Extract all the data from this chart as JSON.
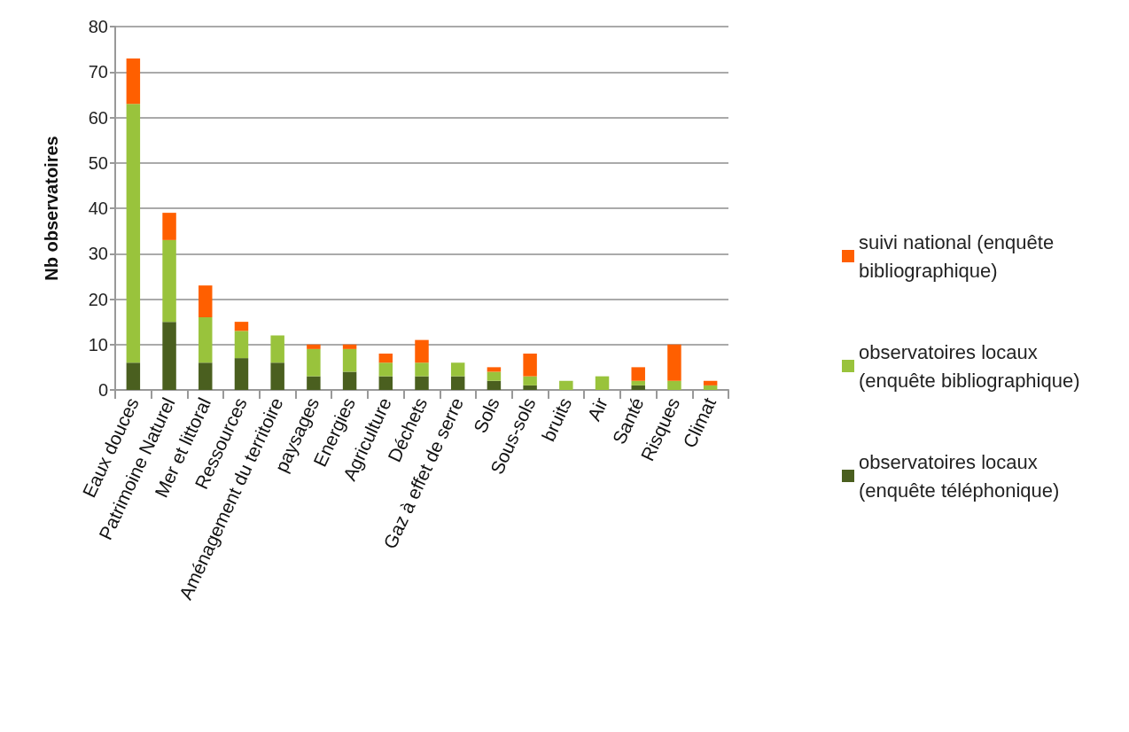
{
  "chart_data": {
    "type": "bar",
    "stacked": true,
    "ylabel": "Nb observatoires",
    "categories": [
      "Eaux douces",
      "Patrimoine Naturel",
      "Mer et littoral",
      "Ressources",
      "Aménagement du territoire",
      "paysages",
      "Energies",
      "Agriculture",
      "Déchets",
      "Gaz à effet de serre",
      "Sols",
      "Sous-sols",
      "bruits",
      "Air",
      "Santé",
      "Risques",
      "Climat"
    ],
    "series": [
      {
        "name": "observatoires locaux (enquête téléphonique)",
        "color": "#4a5f1f",
        "values": [
          6,
          15,
          6,
          7,
          6,
          3,
          4,
          3,
          3,
          3,
          2,
          1,
          0,
          0,
          1,
          0,
          0
        ]
      },
      {
        "name": "observatoires locaux (enquête bibliographique)",
        "color": "#99c33c",
        "values": [
          57,
          18,
          10,
          6,
          6,
          6,
          5,
          3,
          3,
          3,
          2,
          2,
          2,
          3,
          1,
          2,
          1
        ]
      },
      {
        "name": "suivi national (enquête bibliographique)",
        "color": "#ff5f00",
        "values": [
          10,
          6,
          7,
          2,
          0,
          1,
          1,
          2,
          5,
          0,
          1,
          5,
          0,
          0,
          3,
          8,
          1
        ]
      }
    ],
    "ylim": [
      0,
      80
    ],
    "yticks": [
      0,
      10,
      20,
      30,
      40,
      50,
      60,
      70,
      80
    ],
    "grid": "y",
    "legend": "right"
  }
}
